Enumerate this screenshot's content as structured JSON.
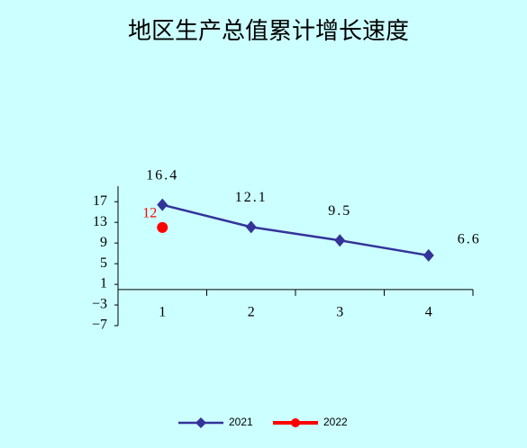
{
  "chart_data": {
    "type": "line",
    "title": "地区生产总值累计增长速度",
    "categories": [
      "1",
      "2",
      "3",
      "4"
    ],
    "series": [
      {
        "name": "2021",
        "color": "#333399",
        "marker": "diamond",
        "values": [
          16.4,
          12.1,
          9.5,
          6.6
        ]
      },
      {
        "name": "2022",
        "color": "#ff0000",
        "marker": "circle",
        "values": [
          12,
          null,
          null,
          null
        ]
      }
    ],
    "ylim": [
      -7,
      20
    ],
    "yticks": [
      17,
      13,
      9,
      5,
      1,
      {
        "value": -3,
        "label": "−3"
      },
      {
        "value": -7,
        "label": "−7"
      }
    ],
    "grid": false,
    "legend": "bottom"
  }
}
